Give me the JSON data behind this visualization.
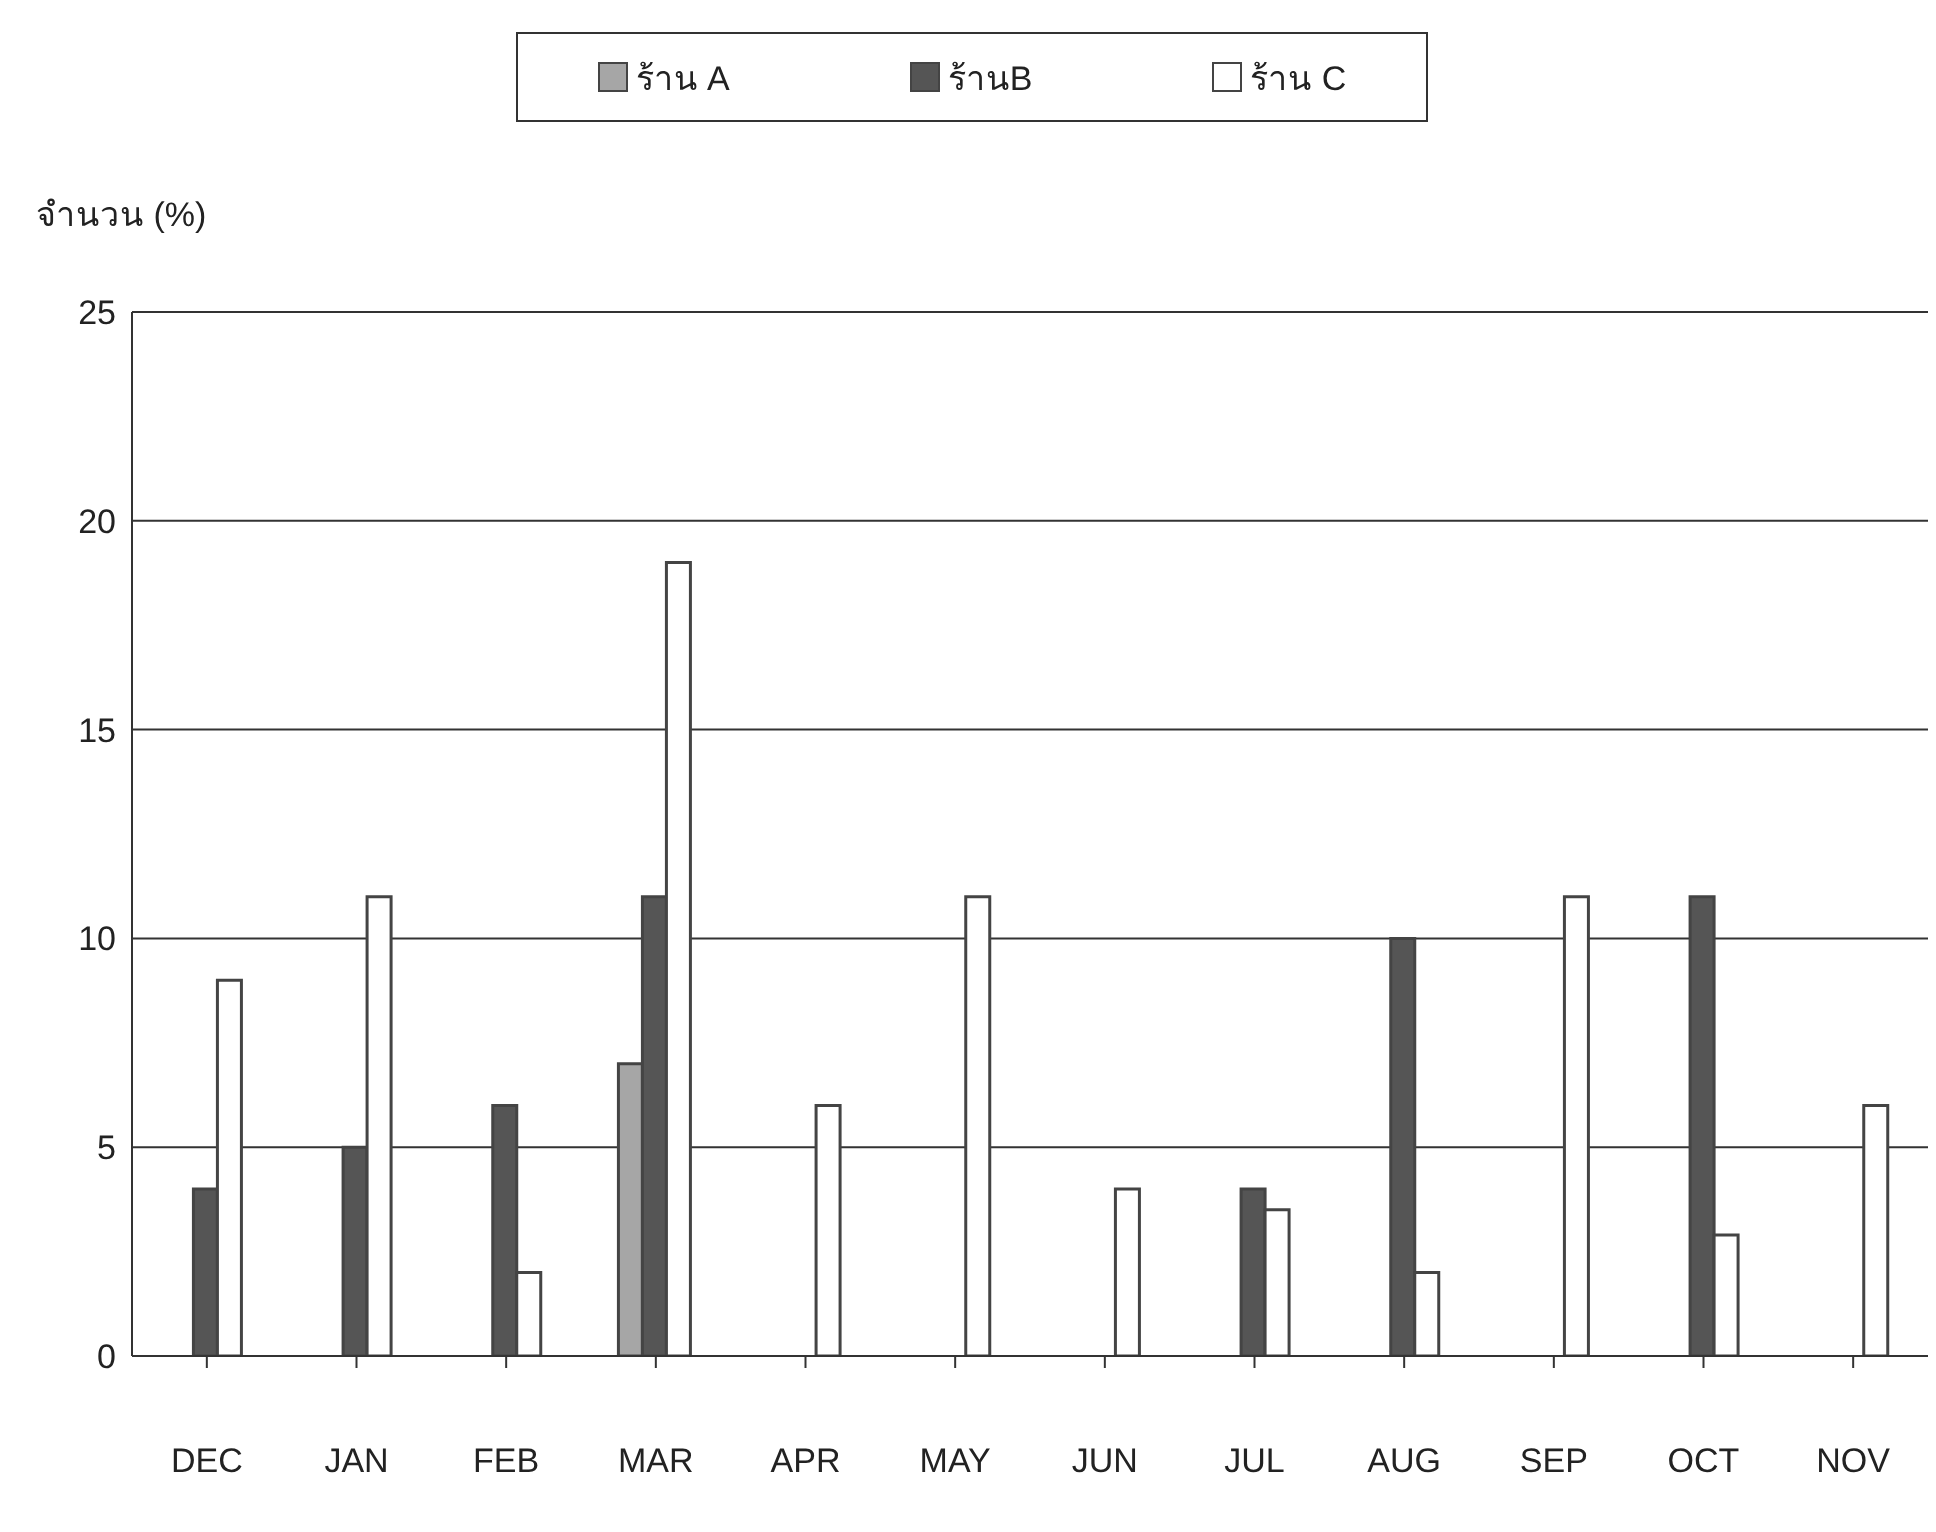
{
  "chart_data": {
    "type": "bar",
    "ylabel": "จำนวน (%)",
    "categories": [
      "DEC",
      "JAN",
      "FEB",
      "MAR",
      "APR",
      "MAY",
      "JUN",
      "JUL",
      "AUG",
      "SEP",
      "OCT",
      "NOV"
    ],
    "series": [
      {
        "name": "ร้าน A",
        "color": "#a6a6a6",
        "values": [
          null,
          null,
          null,
          7,
          null,
          null,
          null,
          null,
          null,
          null,
          null,
          null
        ]
      },
      {
        "name": "ร้านB",
        "color": "#555555",
        "values": [
          4,
          5,
          6,
          11,
          null,
          null,
          null,
          4,
          10,
          null,
          11,
          null
        ]
      },
      {
        "name": "ร้าน C",
        "color": "#ffffff",
        "values": [
          9,
          11,
          2,
          19,
          6,
          11,
          4,
          3.5,
          2,
          11,
          2.9,
          6
        ]
      }
    ],
    "ylim": [
      0,
      25
    ],
    "yticks": [
      0,
      5,
      10,
      15,
      20,
      25
    ],
    "grid": "y",
    "legend": "top"
  }
}
